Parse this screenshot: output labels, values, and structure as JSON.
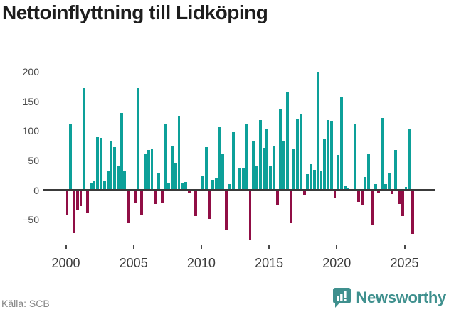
{
  "title": "Nettoinflyttning till Lidköping",
  "source": "Källa: SCB",
  "brand": {
    "name": "Newsworthy",
    "color": "#3f908e"
  },
  "chart_data": {
    "type": "bar",
    "title": "Nettoinflyttning till Lidköping",
    "xlabel": "",
    "ylabel": "",
    "yticks": [
      200,
      150,
      100,
      50,
      0,
      -50
    ],
    "xticks": [
      2000,
      2005,
      2010,
      2015,
      2020,
      2025
    ],
    "ylim": [
      -90,
      215
    ],
    "grid": "horizontal",
    "colors": {
      "positive": "#0da099",
      "negative": "#900e45",
      "axis": "#3a3a3a",
      "gridline": "#e2e2e2"
    },
    "points": [
      [
        "2000Q1",
        -41
      ],
      [
        "2000Q2",
        112
      ],
      [
        "2000Q3",
        -72
      ],
      [
        "2000Q4",
        -34
      ],
      [
        "2001Q1",
        -27
      ],
      [
        "2001Q2",
        172
      ],
      [
        "2001Q3",
        -38
      ],
      [
        "2001Q4",
        12
      ],
      [
        "2002Q1",
        17
      ],
      [
        "2002Q2",
        90
      ],
      [
        "2002Q3",
        88
      ],
      [
        "2002Q4",
        17
      ],
      [
        "2003Q1",
        32
      ],
      [
        "2003Q2",
        84
      ],
      [
        "2003Q3",
        73
      ],
      [
        "2003Q4",
        41
      ],
      [
        "2004Q1",
        130
      ],
      [
        "2004Q2",
        32
      ],
      [
        "2004Q3",
        -55
      ],
      [
        "2004Q4",
        0
      ],
      [
        "2005Q1",
        -21
      ],
      [
        "2005Q2",
        173
      ],
      [
        "2005Q3",
        -41
      ],
      [
        "2005Q4",
        61
      ],
      [
        "2006Q1",
        68
      ],
      [
        "2006Q2",
        69
      ],
      [
        "2006Q3",
        -23
      ],
      [
        "2006Q4",
        28
      ],
      [
        "2007Q1",
        -22
      ],
      [
        "2007Q2",
        112
      ],
      [
        "2007Q3",
        12
      ],
      [
        "2007Q4",
        75
      ],
      [
        "2008Q1",
        45
      ],
      [
        "2008Q2",
        126
      ],
      [
        "2008Q3",
        12
      ],
      [
        "2008Q4",
        14
      ],
      [
        "2009Q1",
        -4
      ],
      [
        "2009Q2",
        0
      ],
      [
        "2009Q3",
        -43
      ],
      [
        "2009Q4",
        0
      ],
      [
        "2010Q1",
        25
      ],
      [
        "2010Q2",
        73
      ],
      [
        "2010Q3",
        -48
      ],
      [
        "2010Q4",
        18
      ],
      [
        "2011Q1",
        21
      ],
      [
        "2011Q2",
        108
      ],
      [
        "2011Q3",
        61
      ],
      [
        "2011Q4",
        -66
      ],
      [
        "2012Q1",
        11
      ],
      [
        "2012Q2",
        98
      ],
      [
        "2012Q3",
        0
      ],
      [
        "2012Q4",
        37
      ],
      [
        "2013Q1",
        37
      ],
      [
        "2013Q2",
        111
      ],
      [
        "2013Q3",
        -83
      ],
      [
        "2013Q4",
        84
      ],
      [
        "2014Q1",
        40
      ],
      [
        "2014Q2",
        118
      ],
      [
        "2014Q3",
        72
      ],
      [
        "2014Q4",
        103
      ],
      [
        "2015Q1",
        42
      ],
      [
        "2015Q2",
        75
      ],
      [
        "2015Q3",
        -25
      ],
      [
        "2015Q4",
        137
      ],
      [
        "2016Q1",
        84
      ],
      [
        "2016Q2",
        167
      ],
      [
        "2016Q3",
        -55
      ],
      [
        "2016Q4",
        70
      ],
      [
        "2017Q1",
        121
      ],
      [
        "2017Q2",
        129
      ],
      [
        "2017Q3",
        -7
      ],
      [
        "2017Q4",
        27
      ],
      [
        "2018Q1",
        44
      ],
      [
        "2018Q2",
        34
      ],
      [
        "2018Q3",
        200
      ],
      [
        "2018Q4",
        33
      ],
      [
        "2019Q1",
        87
      ],
      [
        "2019Q2",
        118
      ],
      [
        "2019Q3",
        117
      ],
      [
        "2019Q4",
        -13
      ],
      [
        "2020Q1",
        60
      ],
      [
        "2020Q2",
        158
      ],
      [
        "2020Q3",
        7
      ],
      [
        "2020Q4",
        3
      ],
      [
        "2021Q1",
        0
      ],
      [
        "2021Q2",
        112
      ],
      [
        "2021Q3",
        -19
      ],
      [
        "2021Q4",
        -24
      ],
      [
        "2022Q1",
        23
      ],
      [
        "2022Q2",
        61
      ],
      [
        "2022Q3",
        -58
      ],
      [
        "2022Q4",
        10
      ],
      [
        "2023Q1",
        -4
      ],
      [
        "2023Q2",
        122
      ],
      [
        "2023Q3",
        10
      ],
      [
        "2023Q4",
        30
      ],
      [
        "2024Q1",
        -6
      ],
      [
        "2024Q2",
        68
      ],
      [
        "2024Q3",
        -23
      ],
      [
        "2024Q4",
        -43
      ],
      [
        "2025Q1",
        6
      ],
      [
        "2025Q2",
        103
      ],
      [
        "2025Q3",
        -74
      ]
    ]
  }
}
